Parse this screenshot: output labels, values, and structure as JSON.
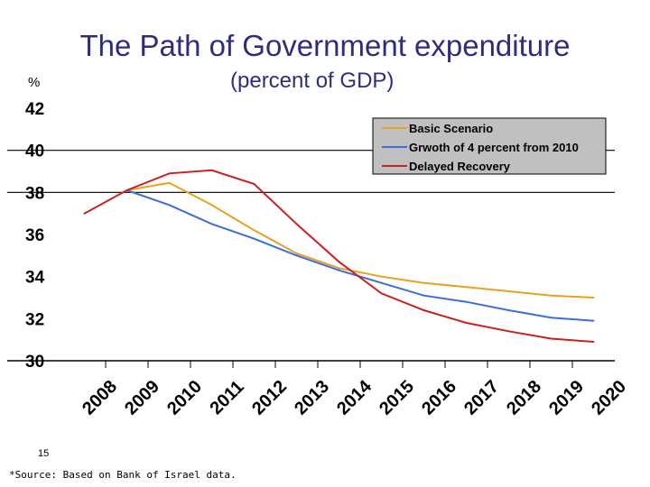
{
  "chart_data": {
    "type": "line",
    "title": "The Path of Government expenditure",
    "subtitle": "(percent of GDP)",
    "ylabel": "%",
    "ylim": [
      30,
      42
    ],
    "yticks": [
      30,
      32,
      34,
      36,
      38,
      40,
      42
    ],
    "grid": "horizontal at 38 and 40",
    "legend_placement": "top-right",
    "categories": [
      "2008",
      "2009",
      "2010",
      "2011",
      "2012",
      "2013",
      "2014",
      "2015",
      "2016",
      "2017",
      "2018",
      "2019",
      "2020"
    ],
    "series": [
      {
        "name": "Basic Scenario",
        "color": "#e8a020",
        "values": [
          null,
          38.1,
          38.45,
          37.4,
          36.2,
          35.1,
          34.4,
          34.0,
          33.7,
          33.5,
          33.3,
          33.1,
          33.0
        ]
      },
      {
        "name": "Grwoth of 4 percent from 2010",
        "color": "#3a6fd8",
        "values": [
          null,
          38.1,
          37.4,
          36.5,
          35.8,
          35.0,
          34.3,
          33.7,
          33.1,
          32.8,
          32.4,
          32.05,
          31.9
        ]
      },
      {
        "name": "Delayed Recovery",
        "color": "#cc1f1f",
        "values": [
          37.0,
          38.1,
          38.9,
          39.05,
          38.4,
          36.5,
          34.7,
          33.2,
          32.4,
          31.8,
          31.4,
          31.05,
          30.9
        ]
      }
    ]
  },
  "footer": {
    "page_number": "15",
    "source": "*Source: Based on Bank of Israel data."
  }
}
